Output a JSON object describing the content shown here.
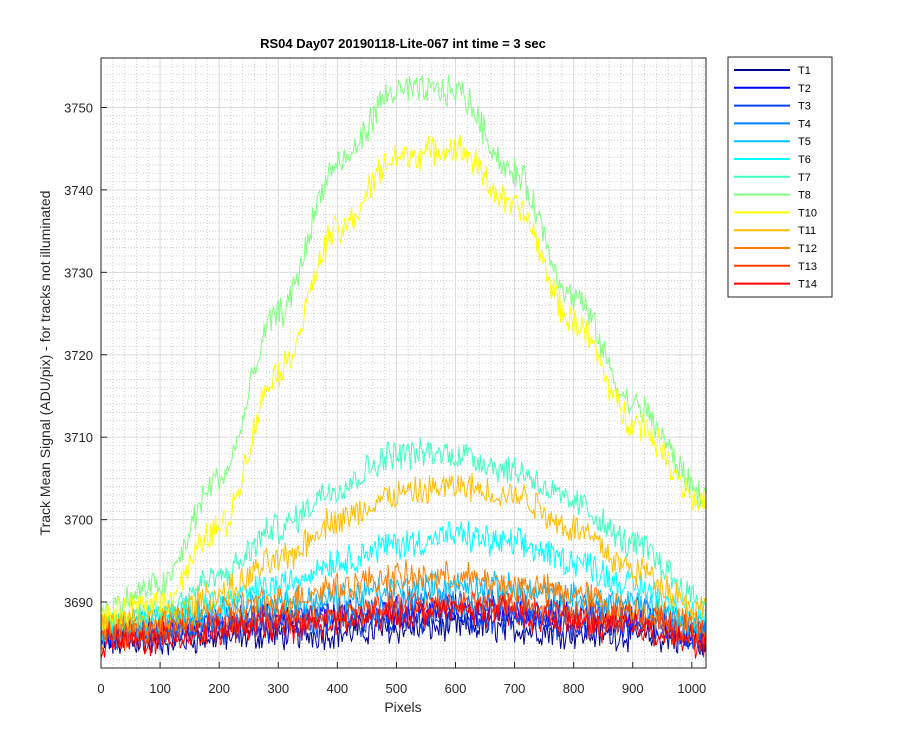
{
  "chart_data": {
    "type": "line",
    "title": "RS04 Day07 20190118-Lite-067 int time = 3 sec",
    "xlabel": "Pixels",
    "ylabel": "Track Mean Signal (ADU/pix) - for tracks not illuminated",
    "xlim": [
      0,
      1024
    ],
    "ylim": [
      3682,
      3756
    ],
    "xticks": [
      0,
      100,
      200,
      300,
      400,
      500,
      600,
      700,
      800,
      900,
      1000
    ],
    "yticks": [
      3690,
      3700,
      3710,
      3720,
      3730,
      3740,
      3750
    ],
    "grid": true,
    "minor_grid": true,
    "legend_position": "outside-right",
    "series": [
      {
        "name": "T1",
        "color": "#00008f",
        "x": [
          0,
          300,
          600,
          900,
          1024
        ],
        "y": [
          3685,
          3686,
          3687,
          3686,
          3685
        ]
      },
      {
        "name": "T2",
        "color": "#0000ff",
        "x": [
          0,
          300,
          600,
          900,
          1024
        ],
        "y": [
          3686,
          3688,
          3689,
          3688,
          3686
        ]
      },
      {
        "name": "T3",
        "color": "#0040ff",
        "x": [
          0,
          300,
          600,
          900,
          1024
        ],
        "y": [
          3686,
          3687,
          3688,
          3687,
          3686
        ]
      },
      {
        "name": "T4",
        "color": "#0080ff",
        "x": [
          0,
          300,
          600,
          900,
          1024
        ],
        "y": [
          3686,
          3688,
          3690,
          3689,
          3687
        ]
      },
      {
        "name": "T5",
        "color": "#00c0ff",
        "x": [
          0,
          300,
          600,
          900,
          1024
        ],
        "y": [
          3687,
          3690,
          3692,
          3690,
          3687
        ]
      },
      {
        "name": "T6",
        "color": "#00ffff",
        "x": [
          0,
          100,
          200,
          300,
          400,
          500,
          600,
          700,
          800,
          900,
          1024
        ],
        "y": [
          3687,
          3688,
          3690,
          3692,
          3695,
          3697,
          3698,
          3697,
          3695,
          3692,
          3688
        ]
      },
      {
        "name": "T7",
        "color": "#40ffbf",
        "x": [
          0,
          100,
          200,
          300,
          400,
          500,
          600,
          700,
          800,
          900,
          1024
        ],
        "y": [
          3687,
          3689,
          3693,
          3699,
          3704,
          3708,
          3708,
          3706,
          3702,
          3697,
          3690
        ]
      },
      {
        "name": "T8",
        "color": "#80ff80",
        "x": [
          0,
          100,
          200,
          300,
          400,
          500,
          600,
          700,
          800,
          900,
          1024
        ],
        "y": [
          3689,
          3692,
          3705,
          3725,
          3743,
          3752,
          3752,
          3742,
          3727,
          3714,
          3703
        ]
      },
      {
        "name": "T10",
        "color": "#ffff00",
        "x": [
          0,
          100,
          200,
          300,
          400,
          500,
          600,
          700,
          800,
          900,
          1024
        ],
        "y": [
          3688,
          3690,
          3699,
          3718,
          3735,
          3744,
          3745,
          3738,
          3724,
          3712,
          3702
        ]
      },
      {
        "name": "T11",
        "color": "#ffbf00",
        "x": [
          0,
          100,
          200,
          300,
          400,
          500,
          600,
          700,
          800,
          900,
          1024
        ],
        "y": [
          3687,
          3688,
          3691,
          3695,
          3700,
          3703,
          3704,
          3703,
          3699,
          3694,
          3689
        ]
      },
      {
        "name": "T12",
        "color": "#ff8000",
        "x": [
          0,
          100,
          200,
          300,
          400,
          500,
          600,
          700,
          800,
          900,
          1024
        ],
        "y": [
          3686,
          3687,
          3689,
          3690,
          3692,
          3693,
          3693,
          3692,
          3691,
          3689,
          3687
        ]
      },
      {
        "name": "T13",
        "color": "#ff4000",
        "x": [
          0,
          300,
          600,
          900,
          1024
        ],
        "y": [
          3686,
          3688,
          3690,
          3688,
          3686
        ]
      },
      {
        "name": "T14",
        "color": "#ff0000",
        "x": [
          0,
          300,
          600,
          900,
          1024
        ],
        "y": [
          3685,
          3687,
          3689,
          3687,
          3685
        ]
      }
    ]
  }
}
